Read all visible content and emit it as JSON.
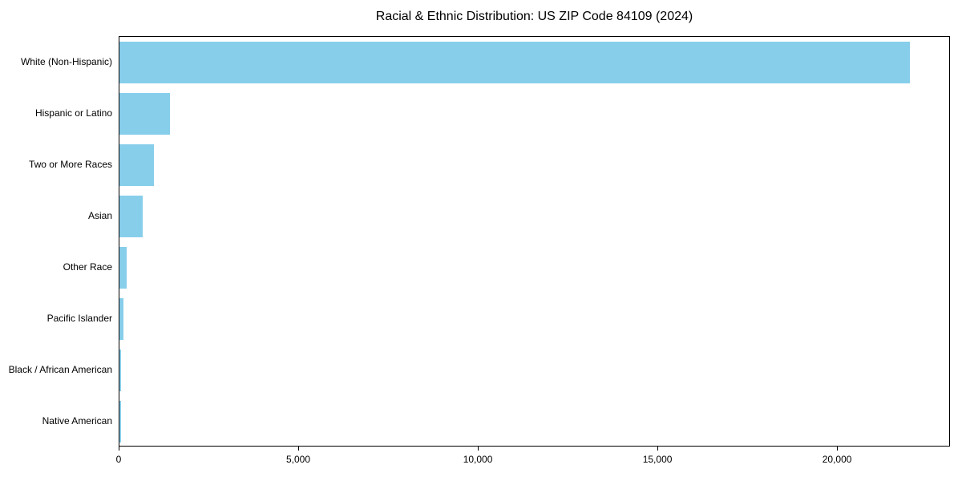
{
  "chart_data": {
    "type": "bar",
    "orientation": "horizontal",
    "title": "Racial & Ethnic Distribution: US ZIP Code 84109 (2024)",
    "categories": [
      "White (Non-Hispanic)",
      "Hispanic or Latino",
      "Two or More Races",
      "Asian",
      "Other Race",
      "Pacific Islander",
      "Black / African American",
      "Native American"
    ],
    "values": [
      22000,
      1400,
      950,
      640,
      200,
      110,
      55,
      35
    ],
    "bar_color": "#87CEEB",
    "xlim": [
      0,
      23100
    ],
    "xticks": [
      0,
      5000,
      10000,
      15000,
      20000
    ],
    "xtick_labels": [
      "0",
      "5,000",
      "10,000",
      "15,000",
      "20,000"
    ],
    "xlabel": "",
    "ylabel": "",
    "grid": false,
    "legend": "none"
  }
}
